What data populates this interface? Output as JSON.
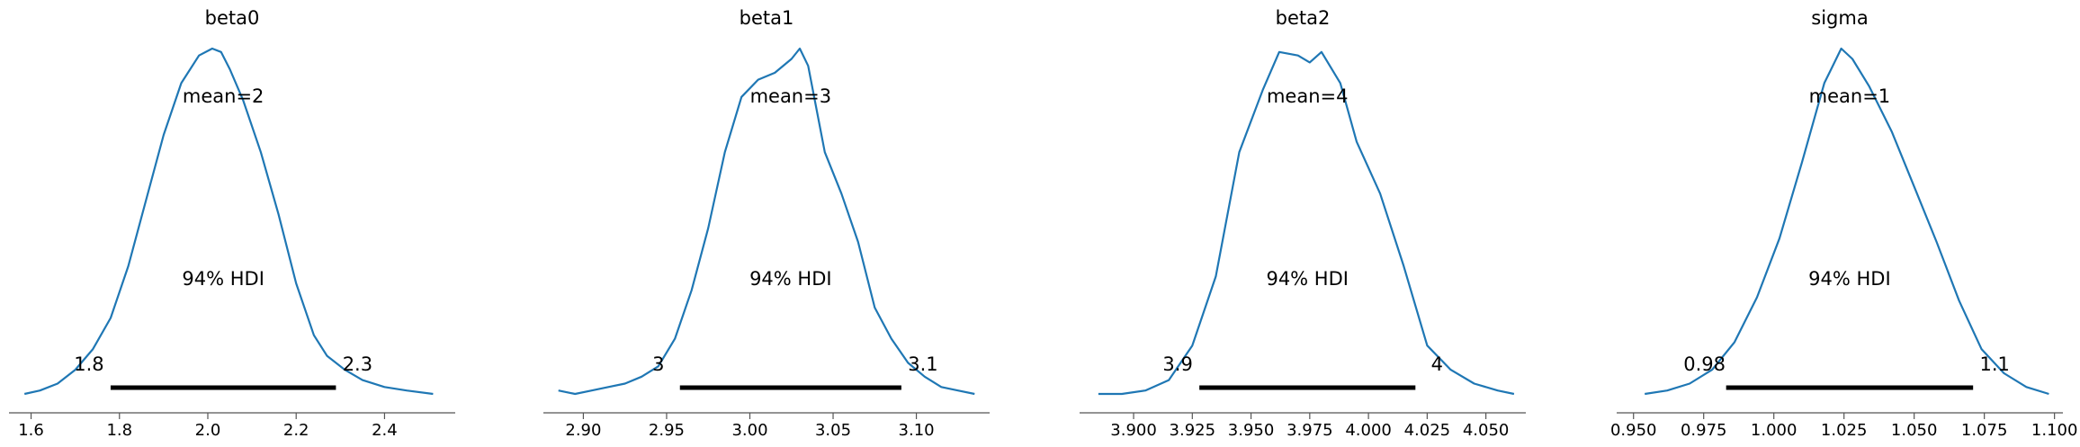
{
  "chart_data": [
    {
      "type": "area",
      "title": "beta0",
      "mean_label": "mean=2",
      "hdi_label": "94% HDI",
      "hdi": [
        1.78,
        2.29
      ],
      "hdi_lower_label": "1.8",
      "hdi_upper_label": "2.3",
      "xlim": [
        1.55,
        2.56
      ],
      "xticks": [
        1.6,
        1.8,
        2.0,
        2.2,
        2.4
      ],
      "xtick_labels": [
        "1.6",
        "1.8",
        "2.0",
        "2.2",
        "2.4"
      ],
      "density": {
        "x": [
          1.585,
          1.62,
          1.66,
          1.7,
          1.74,
          1.78,
          1.82,
          1.86,
          1.9,
          1.94,
          1.98,
          2.01,
          2.03,
          2.05,
          2.08,
          2.12,
          2.16,
          2.2,
          2.24,
          2.27,
          2.31,
          2.35,
          2.4,
          2.45,
          2.51
        ],
        "y": [
          0.0,
          0.01,
          0.03,
          0.07,
          0.13,
          0.22,
          0.37,
          0.56,
          0.75,
          0.9,
          0.98,
          1.0,
          0.99,
          0.94,
          0.85,
          0.7,
          0.52,
          0.32,
          0.17,
          0.11,
          0.07,
          0.04,
          0.02,
          0.01,
          0.0
        ]
      }
    },
    {
      "type": "area",
      "title": "beta1",
      "mean_label": "mean=3",
      "hdi_label": "94% HDI",
      "hdi": [
        2.958,
        3.091
      ],
      "hdi_lower_label": "3",
      "hdi_upper_label": "3.1",
      "xlim": [
        2.876,
        3.144
      ],
      "xticks": [
        2.9,
        2.95,
        3.0,
        3.05,
        3.1
      ],
      "xtick_labels": [
        "2.90",
        "2.95",
        "3.00",
        "3.05",
        "3.10"
      ],
      "density": {
        "x": [
          2.885,
          2.895,
          2.905,
          2.915,
          2.925,
          2.935,
          2.945,
          2.955,
          2.965,
          2.975,
          2.985,
          2.995,
          3.005,
          3.015,
          3.025,
          3.03,
          3.035,
          3.045,
          3.055,
          3.065,
          3.075,
          3.085,
          3.095,
          3.105,
          3.115,
          3.125,
          3.135
        ],
        "y": [
          0.01,
          0.0,
          0.01,
          0.02,
          0.03,
          0.05,
          0.08,
          0.16,
          0.3,
          0.48,
          0.7,
          0.86,
          0.91,
          0.93,
          0.97,
          1.0,
          0.95,
          0.7,
          0.58,
          0.44,
          0.25,
          0.16,
          0.09,
          0.05,
          0.02,
          0.01,
          0.0
        ]
      }
    },
    {
      "type": "area",
      "title": "beta2",
      "mean_label": "mean=4",
      "hdi_label": "94% HDI",
      "hdi": [
        3.928,
        4.02
      ],
      "hdi_lower_label": "3.9",
      "hdi_upper_label": "4",
      "xlim": [
        3.877,
        4.067
      ],
      "xticks": [
        3.9,
        3.925,
        3.95,
        3.975,
        4.0,
        4.025,
        4.05
      ],
      "xtick_labels": [
        "3.900",
        "3.925",
        "3.950",
        "3.975",
        "4.000",
        "4.025",
        "4.050"
      ],
      "density": {
        "x": [
          3.885,
          3.895,
          3.905,
          3.915,
          3.925,
          3.935,
          3.945,
          3.955,
          3.962,
          3.97,
          3.975,
          3.98,
          3.988,
          3.995,
          4.005,
          4.015,
          4.025,
          4.035,
          4.045,
          4.055,
          4.062
        ],
        "y": [
          0.0,
          0.0,
          0.01,
          0.04,
          0.14,
          0.34,
          0.7,
          0.88,
          0.99,
          0.98,
          0.96,
          0.99,
          0.9,
          0.73,
          0.58,
          0.37,
          0.14,
          0.07,
          0.03,
          0.01,
          0.0
        ]
      }
    },
    {
      "type": "area",
      "title": "sigma",
      "mean_label": "mean=1",
      "hdi_label": "94% HDI",
      "hdi": [
        0.983,
        1.071
      ],
      "hdi_lower_label": "0.98",
      "hdi_upper_label": "1.1",
      "xlim": [
        0.944,
        1.103
      ],
      "xticks": [
        0.95,
        0.975,
        1.0,
        1.025,
        1.05,
        1.075,
        1.1
      ],
      "xtick_labels": [
        "0.950",
        "0.975",
        "1.000",
        "1.025",
        "1.050",
        "1.075",
        "1.100"
      ],
      "density": {
        "x": [
          0.954,
          0.962,
          0.97,
          0.978,
          0.986,
          0.994,
          1.002,
          1.01,
          1.018,
          1.024,
          1.028,
          1.034,
          1.042,
          1.05,
          1.058,
          1.066,
          1.074,
          1.082,
          1.09,
          1.098
        ],
        "y": [
          0.0,
          0.01,
          0.03,
          0.07,
          0.15,
          0.28,
          0.45,
          0.67,
          0.9,
          1.0,
          0.97,
          0.89,
          0.76,
          0.6,
          0.44,
          0.27,
          0.13,
          0.06,
          0.02,
          0.0
        ]
      }
    }
  ],
  "colors": {
    "density_line": "#1f77b4",
    "hdi_bar": "#000000",
    "axis": "#555555",
    "text": "#000000"
  }
}
